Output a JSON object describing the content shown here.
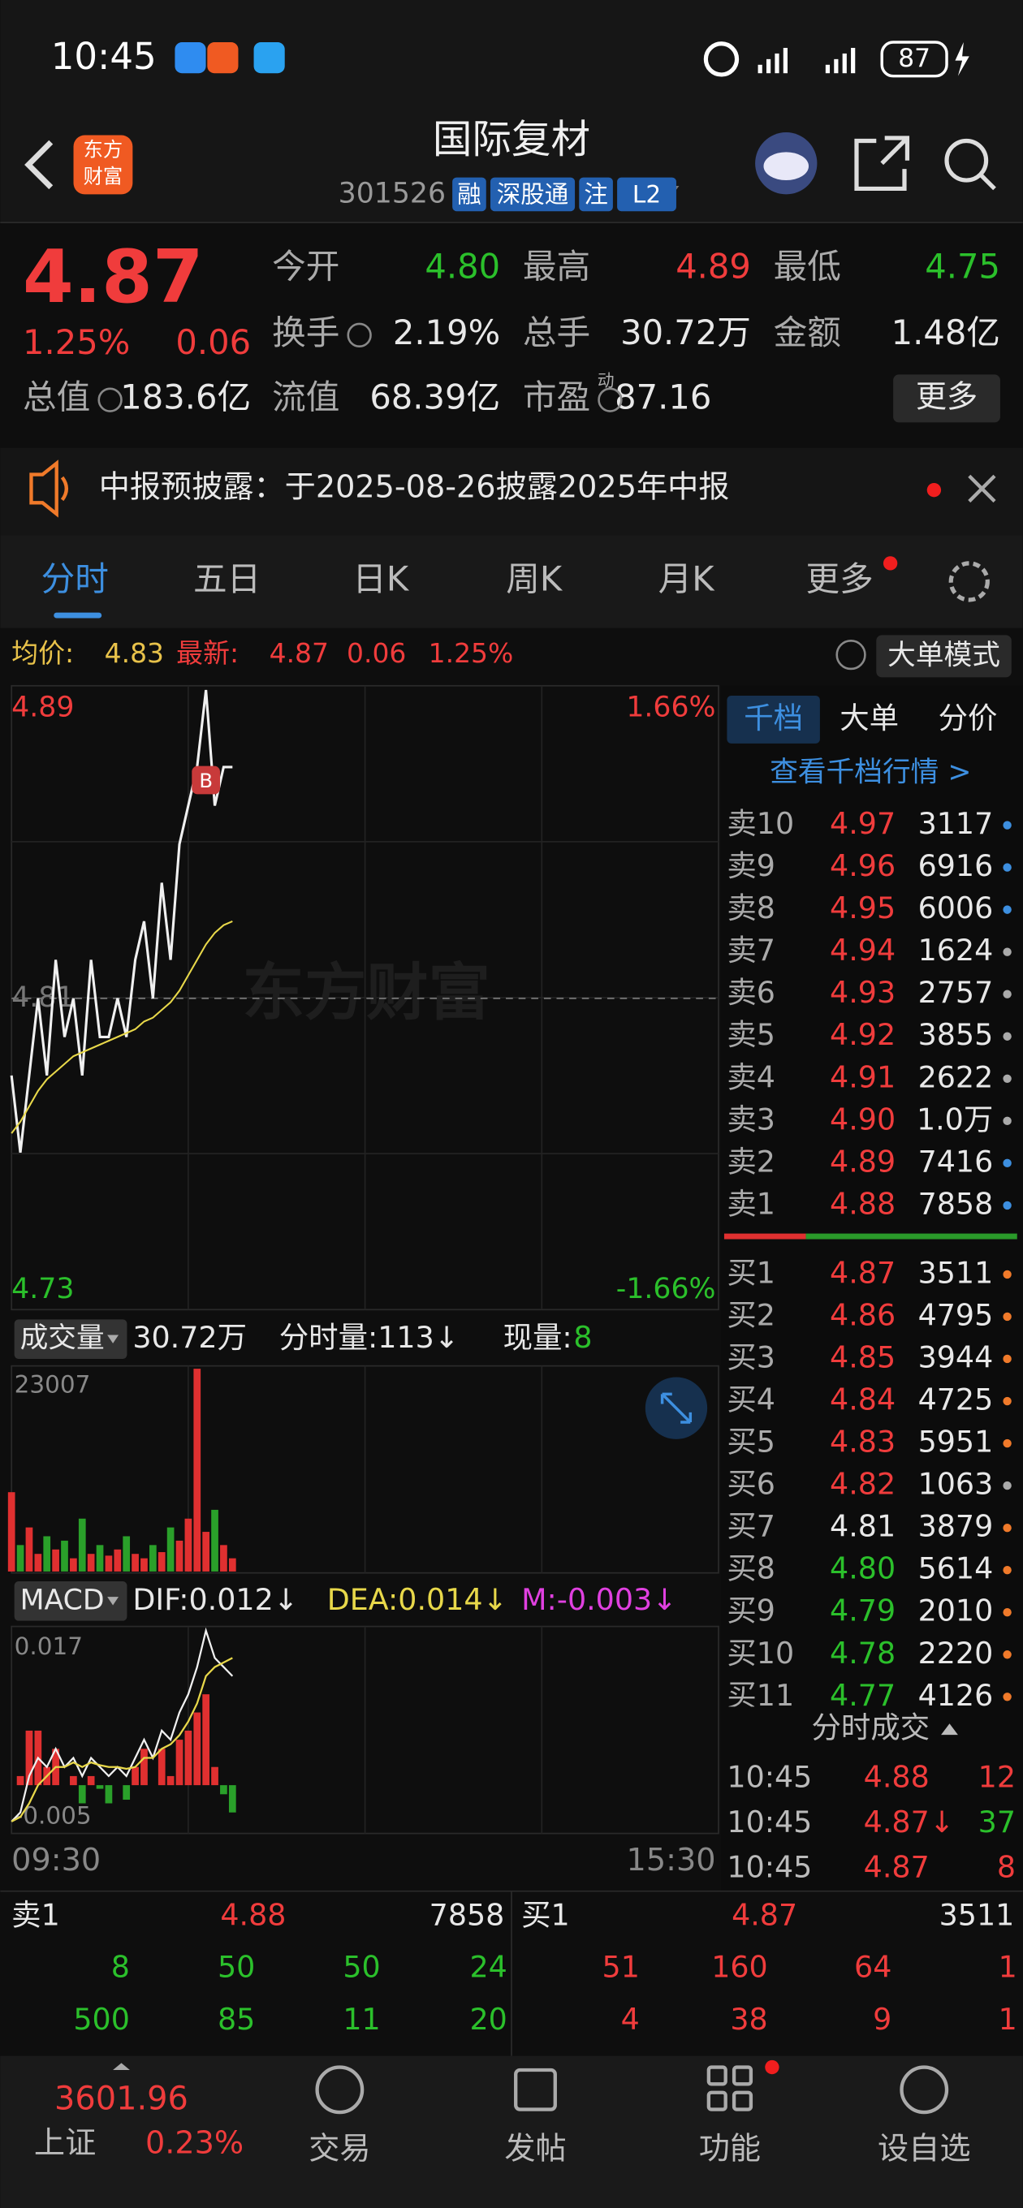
{
  "status_bar": {
    "time": "10:45",
    "battery": "87"
  },
  "header": {
    "logo": [
      "东方",
      "财富"
    ],
    "title": "国际复材",
    "code": "301526",
    "tags": [
      "融",
      "深股通",
      "注",
      "L2"
    ]
  },
  "quote": {
    "price": "4.87",
    "pct": "1.25%",
    "change": "0.06",
    "fields": [
      {
        "label": "今开",
        "value": "4.80",
        "color": "#2bc02b"
      },
      {
        "label": "最高",
        "value": "4.89",
        "color": "#f03c3c"
      },
      {
        "label": "最低",
        "value": "4.75",
        "color": "#2bc02b"
      },
      {
        "label": "换手",
        "value": "2.19%",
        "color": "#e8e8e8"
      },
      {
        "label": "总手",
        "value": "30.72万",
        "color": "#e8e8e8"
      },
      {
        "label": "金额",
        "value": "1.48亿",
        "color": "#e8e8e8"
      },
      {
        "label": "总值",
        "value": "183.6亿",
        "color": "#e8e8e8"
      },
      {
        "label": "流值",
        "value": "68.39亿",
        "color": "#e8e8e8"
      },
      {
        "label": "市盈",
        "value": "87.16",
        "color": "#e8e8e8"
      }
    ],
    "pe_sup": "动",
    "more": "更多"
  },
  "notice": "中报预披露：于2025-08-26披露2025年中报",
  "tabs": [
    "分时",
    "五日",
    "日K",
    "周K",
    "月K",
    "更多"
  ],
  "info": {
    "avg_label": "均价:",
    "avg": "4.83",
    "latest_label": "最新:",
    "latest": "4.87",
    "change": "0.06",
    "pct": "1.25%",
    "mode": "大单模式"
  },
  "chart_data": {
    "type": "line",
    "watermark": "东方财富",
    "marker": "B",
    "x": [
      0,
      3,
      6,
      9,
      12,
      15,
      18,
      21,
      24,
      27,
      30,
      33,
      36,
      39,
      42,
      45,
      48,
      51,
      54,
      57,
      60,
      63,
      66,
      69,
      72,
      75
    ],
    "xlim": [
      0,
      240
    ],
    "xticks": [
      {
        "value": 0,
        "label": "09:30"
      },
      {
        "value": 240,
        "label": "15:30"
      }
    ],
    "ylim": [
      4.73,
      4.89
    ],
    "yticks": [
      4.73,
      4.81,
      4.89
    ],
    "pct_labels": [
      "-1.66%",
      "1.66%"
    ],
    "series": [
      {
        "name": "price",
        "color": "#f0f0f0",
        "values": [
          4.79,
          4.77,
          4.79,
          4.81,
          4.79,
          4.82,
          4.8,
          4.81,
          4.79,
          4.82,
          4.8,
          4.8,
          4.81,
          4.8,
          4.82,
          4.83,
          4.81,
          4.84,
          4.82,
          4.85,
          4.86,
          4.87,
          4.89,
          4.86,
          4.87,
          4.87
        ]
      },
      {
        "name": "avg",
        "color": "#e8d84a",
        "values": [
          4.775,
          4.778,
          4.782,
          4.786,
          4.789,
          4.791,
          4.793,
          4.795,
          4.796,
          4.797,
          4.798,
          4.799,
          4.8,
          4.801,
          4.802,
          4.804,
          4.805,
          4.807,
          4.809,
          4.812,
          4.816,
          4.82,
          4.824,
          4.827,
          4.829,
          4.83
        ]
      }
    ]
  },
  "volume": {
    "label": "成交量",
    "total": "30.72万",
    "tick_vol": "分时量:113↓",
    "now_label": "现量:",
    "now": "8",
    "ylim": [
      0,
      23007
    ],
    "values": [
      9000,
      3000,
      5000,
      2000,
      4000,
      2500,
      3500,
      1500,
      6000,
      2000,
      3000,
      1800,
      2500,
      4000,
      2000,
      1500,
      3000,
      2200,
      5000,
      3500,
      6000,
      23007,
      4500,
      7000,
      3000,
      1500
    ]
  },
  "macd": {
    "label": "MACD",
    "dif_label": "DIF:0.012↓",
    "dea_label": "DEA:0.014↓",
    "m_label": "M:-0.003↓",
    "ylim": [
      -0.005,
      0.017
    ],
    "yticks": [
      {
        "value": 0.017,
        "label": "0.017"
      },
      {
        "value": -0.005,
        "label": "-0.005"
      }
    ],
    "dif": [
      -0.004,
      -0.003,
      0.001,
      0.003,
      0.002,
      0.004,
      0.002,
      0.003,
      0.001,
      0.003,
      0.002,
      0.001,
      0.002,
      0.001,
      0.003,
      0.005,
      0.003,
      0.006,
      0.005,
      0.008,
      0.01,
      0.013,
      0.017,
      0.014,
      0.013,
      0.012
    ],
    "dea": [
      -0.004,
      -0.0035,
      -0.002,
      0,
      0.001,
      0.002,
      0.002,
      0.0025,
      0.002,
      0.0025,
      0.0022,
      0.002,
      0.002,
      0.0018,
      0.002,
      0.003,
      0.003,
      0.004,
      0.0045,
      0.0055,
      0.007,
      0.009,
      0.012,
      0.013,
      0.0135,
      0.014
    ],
    "m": [
      0,
      0.001,
      0.006,
      0.006,
      0.002,
      0.004,
      0,
      0.001,
      -0.002,
      0.001,
      -0.0004,
      -0.002,
      0,
      -0.0016,
      0.002,
      0.004,
      0,
      0.004,
      0.001,
      0.005,
      0.006,
      0.008,
      0.01,
      0.002,
      -0.001,
      -0.003
    ]
  },
  "book": {
    "tabs": [
      "千档",
      "大单",
      "分价"
    ],
    "link": "查看千档行情 >",
    "asks": [
      {
        "label": "卖10",
        "price": "4.97",
        "volume": "3117",
        "dot": "#3d8fe0"
      },
      {
        "label": "卖9",
        "price": "4.96",
        "volume": "6916",
        "dot": "#3d8fe0"
      },
      {
        "label": "卖8",
        "price": "4.95",
        "volume": "6006",
        "dot": "#3d8fe0"
      },
      {
        "label": "卖7",
        "price": "4.94",
        "volume": "1624",
        "dot": "#aaaaaa"
      },
      {
        "label": "卖6",
        "price": "4.93",
        "volume": "2757",
        "dot": "#aaaaaa"
      },
      {
        "label": "卖5",
        "price": "4.92",
        "volume": "3855",
        "dot": "#aaaaaa"
      },
      {
        "label": "卖4",
        "price": "4.91",
        "volume": "2622",
        "dot": "#aaaaaa"
      },
      {
        "label": "卖3",
        "price": "4.90",
        "volume": "1.0万",
        "dot": "#aaaaaa"
      },
      {
        "label": "卖2",
        "price": "4.89",
        "volume": "7416",
        "dot": "#3d8fe0"
      },
      {
        "label": "卖1",
        "price": "4.88",
        "volume": "7858",
        "dot": "#3d8fe0"
      }
    ],
    "bids": [
      {
        "label": "买1",
        "price": "4.87",
        "volume": "3511",
        "dot": "#f07a2a"
      },
      {
        "label": "买2",
        "price": "4.86",
        "volume": "4795",
        "dot": "#f07a2a"
      },
      {
        "label": "买3",
        "price": "4.85",
        "volume": "3944",
        "dot": "#f07a2a"
      },
      {
        "label": "买4",
        "price": "4.84",
        "volume": "4725",
        "dot": "#f07a2a"
      },
      {
        "label": "买5",
        "price": "4.83",
        "volume": "5951",
        "dot": "#f07a2a"
      },
      {
        "label": "买6",
        "price": "4.82",
        "volume": "1063",
        "dot": "#aaaaaa"
      },
      {
        "label": "买7",
        "price": "4.81",
        "volume": "3879",
        "dot": "#f07a2a"
      },
      {
        "label": "买8",
        "price": "4.80",
        "volume": "5614",
        "dot": "#f07a2a"
      },
      {
        "label": "买9",
        "price": "4.79",
        "volume": "2010",
        "dot": "#f07a2a"
      },
      {
        "label": "买10",
        "price": "4.78",
        "volume": "2220",
        "dot": "#f07a2a"
      },
      {
        "label": "买11",
        "price": "4.77",
        "volume": "4126",
        "dot": "#f07a2a"
      }
    ],
    "trades_title": "分时成交",
    "trades": [
      {
        "time": "10:45",
        "price": "4.88",
        "volume": "12"
      },
      {
        "time": "10:45",
        "price": "4.87↓",
        "volume": "37"
      },
      {
        "time": "10:45",
        "price": "4.87",
        "volume": "8"
      }
    ]
  },
  "queue": {
    "ask": {
      "label": "卖1",
      "price": "4.88",
      "volume": "7858",
      "rows": [
        [
          "8",
          "50",
          "50",
          "24"
        ],
        [
          "500",
          "85",
          "11",
          "20"
        ]
      ]
    },
    "bid": {
      "label": "买1",
      "price": "4.87",
      "volume": "3511",
      "rows": [
        [
          "51",
          "160",
          "64",
          "1"
        ],
        [
          "4",
          "38",
          "9",
          "1"
        ]
      ]
    }
  },
  "nav": {
    "index_value": "3601.96",
    "index_name": "上证",
    "index_pct": "0.23%",
    "items": [
      "交易",
      "发帖",
      "功能",
      "设自选"
    ]
  }
}
